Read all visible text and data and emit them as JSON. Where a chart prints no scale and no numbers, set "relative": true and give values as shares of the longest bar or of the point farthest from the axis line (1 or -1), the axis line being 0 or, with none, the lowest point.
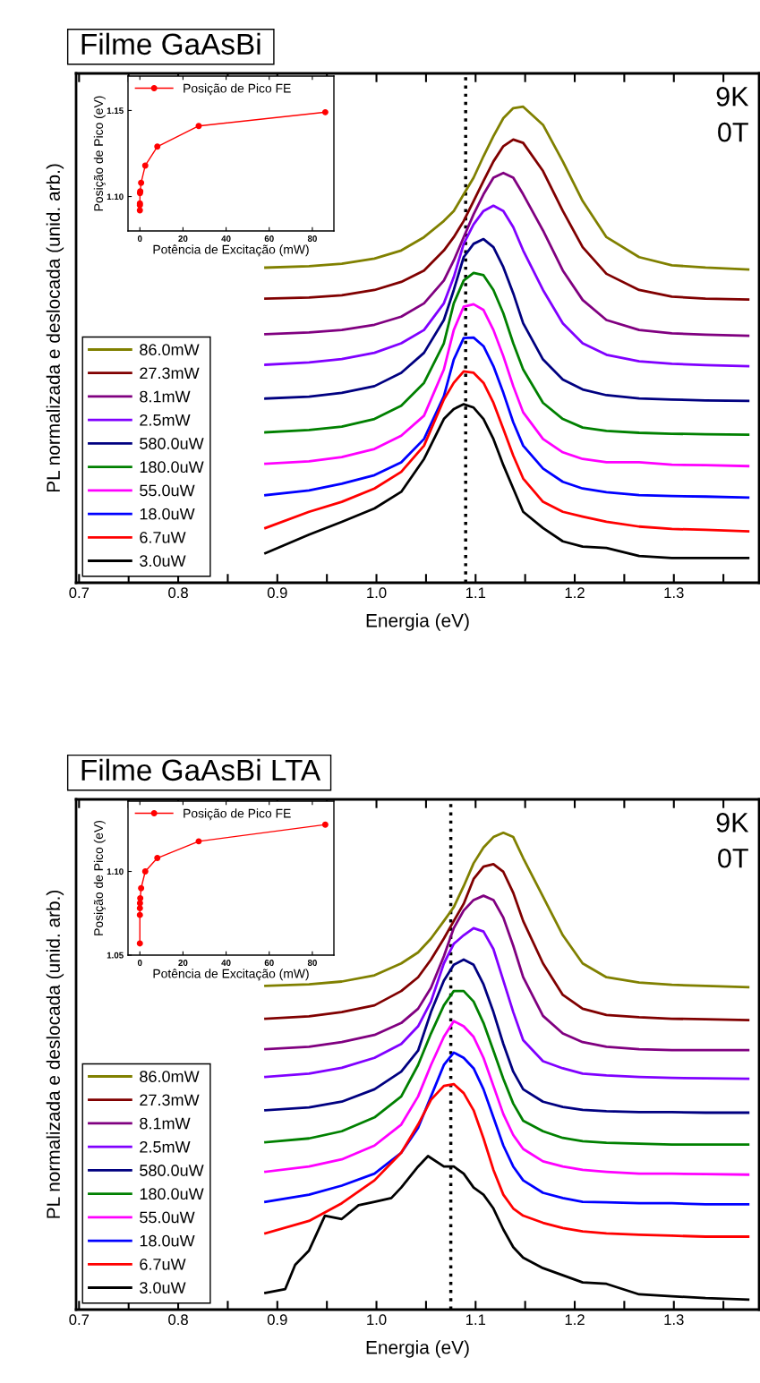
{
  "chart_data": [
    {
      "type": "line",
      "title": "Filme GaAsBi",
      "xlabel": "Energia (eV)",
      "ylabel": "PL normalizada e deslocada (unid. arb.)",
      "relative": true,
      "xlim": [
        0.697,
        1.386
      ],
      "xticks": [
        0.7,
        {
          "value": 0.75,
          "label": null
        },
        0.8,
        {
          "value": 0.85,
          "label": null
        },
        0.9,
        {
          "value": 0.95,
          "label": null
        },
        {
          "value": 1,
          "label": "1.0"
        },
        {
          "value": 1.05,
          "label": null
        },
        1.1,
        {
          "value": 1.15,
          "label": null
        },
        1.2,
        {
          "value": 1.25,
          "label": null
        },
        1.3,
        {
          "value": 1.35,
          "label": null
        }
      ],
      "tick_labels": "x",
      "legend": "bottom left",
      "annotations": [
        "9K",
        "0T"
      ],
      "ref_lines": [
        {
          "axis": "x",
          "value": 1.09,
          "color": "#000000",
          "line_style": "dotted"
        }
      ],
      "x": [
        0.888,
        0.932,
        0.965,
        0.998,
        1.025,
        1.048,
        1.068,
        1.078,
        1.088,
        1.098,
        1.108,
        1.118,
        1.128,
        1.138,
        1.148,
        1.168,
        1.188,
        1.208,
        1.232,
        1.265,
        1.298,
        1.332,
        1.375
      ],
      "series": [
        {
          "name": "86.0mW",
          "color": "#808000",
          "values": [
            0.662,
            0.665,
            0.67,
            0.681,
            0.698,
            0.726,
            0.76,
            0.781,
            0.816,
            0.851,
            0.896,
            0.938,
            0.976,
            0.997,
            1.0,
            0.962,
            0.885,
            0.802,
            0.726,
            0.684,
            0.667,
            0.662,
            0.658
          ]
        },
        {
          "name": "27.3mW",
          "color": "#800000",
          "values": [
            0.597,
            0.599,
            0.604,
            0.615,
            0.632,
            0.656,
            0.698,
            0.726,
            0.76,
            0.802,
            0.844,
            0.885,
            0.917,
            0.931,
            0.924,
            0.865,
            0.781,
            0.705,
            0.649,
            0.615,
            0.601,
            0.597,
            0.595
          ]
        },
        {
          "name": "8.1mW",
          "color": "#800080",
          "values": [
            0.522,
            0.526,
            0.531,
            0.542,
            0.559,
            0.587,
            0.635,
            0.677,
            0.726,
            0.774,
            0.816,
            0.851,
            0.861,
            0.851,
            0.816,
            0.74,
            0.656,
            0.594,
            0.552,
            0.531,
            0.524,
            0.521,
            0.519
          ]
        },
        {
          "name": "2.5mW",
          "color": "#8000ff",
          "values": [
            0.458,
            0.463,
            0.47,
            0.483,
            0.503,
            0.531,
            0.587,
            0.642,
            0.712,
            0.753,
            0.781,
            0.792,
            0.781,
            0.747,
            0.698,
            0.615,
            0.545,
            0.503,
            0.479,
            0.465,
            0.46,
            0.457,
            0.455
          ]
        },
        {
          "name": "580.0uW",
          "color": "#000080",
          "values": [
            0.387,
            0.391,
            0.399,
            0.413,
            0.441,
            0.483,
            0.552,
            0.615,
            0.684,
            0.712,
            0.722,
            0.705,
            0.663,
            0.608,
            0.545,
            0.469,
            0.427,
            0.406,
            0.394,
            0.387,
            0.385,
            0.383,
            0.382
          ]
        },
        {
          "name": "180.0uW",
          "color": "#008000",
          "values": [
            0.316,
            0.321,
            0.328,
            0.344,
            0.372,
            0.42,
            0.503,
            0.587,
            0.635,
            0.651,
            0.646,
            0.615,
            0.566,
            0.503,
            0.448,
            0.378,
            0.344,
            0.326,
            0.319,
            0.315,
            0.313,
            0.312,
            0.311
          ]
        },
        {
          "name": "55.0uW",
          "color": "#ff00ff",
          "values": [
            0.25,
            0.255,
            0.264,
            0.281,
            0.309,
            0.351,
            0.448,
            0.531,
            0.58,
            0.585,
            0.573,
            0.531,
            0.476,
            0.413,
            0.358,
            0.302,
            0.274,
            0.26,
            0.253,
            0.253,
            0.248,
            0.247,
            0.245
          ]
        },
        {
          "name": "18.0uW",
          "color": "#0000ff",
          "values": [
            0.184,
            0.194,
            0.208,
            0.226,
            0.253,
            0.302,
            0.392,
            0.469,
            0.514,
            0.515,
            0.497,
            0.455,
            0.399,
            0.337,
            0.288,
            0.24,
            0.212,
            0.198,
            0.19,
            0.184,
            0.182,
            0.181,
            0.179
          ]
        },
        {
          "name": "6.7uW",
          "color": "#ff0000",
          "values": [
            0.115,
            0.149,
            0.17,
            0.198,
            0.233,
            0.288,
            0.385,
            0.42,
            0.444,
            0.441,
            0.42,
            0.378,
            0.323,
            0.267,
            0.219,
            0.17,
            0.149,
            0.139,
            0.128,
            0.118,
            0.113,
            0.111,
            0.108
          ]
        },
        {
          "name": "3.0uW",
          "color": "#000000",
          "values": [
            0.062,
            0.101,
            0.128,
            0.156,
            0.191,
            0.26,
            0.344,
            0.365,
            0.375,
            0.368,
            0.344,
            0.302,
            0.247,
            0.198,
            0.149,
            0.115,
            0.087,
            0.076,
            0.073,
            0.056,
            0.052,
            0.052,
            0.052
          ]
        }
      ]
    },
    {
      "type": "line",
      "xlabel": "Potência de Excitação (mW)",
      "ylabel": "Posição de Pico (eV)",
      "xlim": [
        -5.5,
        90
      ],
      "xticks": [
        0,
        20,
        40,
        60,
        80
      ],
      "ylim": [
        1.08,
        1.17
      ],
      "yticks": [
        {
          "value": 1.1,
          "label": "1.10"
        },
        {
          "value": 1.15,
          "label": "1.15"
        }
      ],
      "marker": "circle",
      "legend": "top left",
      "x": [
        0.003,
        0.0067,
        0.018,
        0.055,
        0.18,
        0.58,
        2.5,
        8.1,
        27.3,
        86.0
      ],
      "series": [
        {
          "name": "Posição de Pico FE",
          "color": "#ff0000",
          "values": [
            1.092,
            1.095,
            1.096,
            1.102,
            1.103,
            1.108,
            1.118,
            1.129,
            1.141,
            1.149
          ]
        }
      ]
    },
    {
      "type": "line",
      "title": "Filme GaAsBi LTA",
      "xlabel": "Energia (eV)",
      "ylabel": "PL normalizada e deslocada (unid. arb.)",
      "relative": true,
      "xlim": [
        0.697,
        1.386
      ],
      "xticks": [
        0.7,
        {
          "value": 0.75,
          "label": null
        },
        0.8,
        {
          "value": 0.85,
          "label": null
        },
        0.9,
        {
          "value": 0.95,
          "label": null
        },
        {
          "value": 1,
          "label": "1.0"
        },
        {
          "value": 1.05,
          "label": null
        },
        1.1,
        {
          "value": 1.15,
          "label": null
        },
        1.2,
        {
          "value": 1.25,
          "label": null
        },
        1.3,
        {
          "value": 1.35,
          "label": null
        }
      ],
      "tick_labels": "x",
      "legend": "bottom left",
      "annotations": [
        "9K",
        "0T"
      ],
      "ref_lines": [
        {
          "axis": "x",
          "value": 1.075,
          "color": "#000000",
          "line_style": "dotted"
        }
      ],
      "x": [
        0.888,
        0.932,
        0.965,
        0.998,
        1.025,
        1.042,
        1.055,
        1.068,
        1.078,
        1.088,
        1.098,
        1.108,
        1.118,
        1.128,
        1.138,
        1.148,
        1.168,
        1.188,
        1.208,
        1.232,
        1.265,
        1.298,
        1.332,
        1.375
      ],
      "series": [
        {
          "name": "86.0mW",
          "color": "#808000",
          "values": [
            0.679,
            0.682,
            0.688,
            0.701,
            0.726,
            0.749,
            0.778,
            0.815,
            0.844,
            0.888,
            0.936,
            0.969,
            0.991,
            1.0,
            0.991,
            0.947,
            0.866,
            0.785,
            0.726,
            0.697,
            0.686,
            0.681,
            0.679,
            0.676
          ]
        },
        {
          "name": "27.3mW",
          "color": "#800000",
          "values": [
            0.61,
            0.615,
            0.624,
            0.638,
            0.668,
            0.697,
            0.734,
            0.778,
            0.815,
            0.851,
            0.903,
            0.929,
            0.934,
            0.918,
            0.874,
            0.815,
            0.726,
            0.66,
            0.631,
            0.618,
            0.613,
            0.61,
            0.609,
            0.607
          ]
        },
        {
          "name": "8.1mW",
          "color": "#800080",
          "values": [
            0.546,
            0.551,
            0.561,
            0.576,
            0.601,
            0.631,
            0.675,
            0.741,
            0.8,
            0.837,
            0.859,
            0.868,
            0.859,
            0.822,
            0.763,
            0.697,
            0.616,
            0.579,
            0.561,
            0.551,
            0.546,
            0.544,
            0.544,
            0.544
          ]
        },
        {
          "name": "2.5mW",
          "color": "#8000ff",
          "values": [
            0.488,
            0.495,
            0.507,
            0.528,
            0.557,
            0.594,
            0.646,
            0.726,
            0.767,
            0.785,
            0.8,
            0.793,
            0.756,
            0.69,
            0.624,
            0.565,
            0.521,
            0.506,
            0.495,
            0.491,
            0.488,
            0.486,
            0.485,
            0.484
          ]
        },
        {
          "name": "580.0uW",
          "color": "#000080",
          "values": [
            0.418,
            0.424,
            0.436,
            0.462,
            0.499,
            0.543,
            0.624,
            0.69,
            0.723,
            0.734,
            0.723,
            0.682,
            0.624,
            0.557,
            0.499,
            0.462,
            0.436,
            0.425,
            0.419,
            0.416,
            0.414,
            0.414,
            0.413,
            0.413
          ]
        },
        {
          "name": "180.0uW",
          "color": "#008000",
          "values": [
            0.351,
            0.359,
            0.374,
            0.403,
            0.447,
            0.513,
            0.579,
            0.638,
            0.668,
            0.668,
            0.646,
            0.601,
            0.543,
            0.484,
            0.432,
            0.396,
            0.374,
            0.36,
            0.353,
            0.35,
            0.348,
            0.346,
            0.346,
            0.346
          ]
        },
        {
          "name": "55.0uW",
          "color": "#ff00ff",
          "values": [
            0.289,
            0.3,
            0.315,
            0.344,
            0.388,
            0.447,
            0.513,
            0.572,
            0.605,
            0.594,
            0.572,
            0.528,
            0.469,
            0.41,
            0.366,
            0.337,
            0.311,
            0.3,
            0.293,
            0.289,
            0.285,
            0.285,
            0.284,
            0.283
          ]
        },
        {
          "name": "18.0uW",
          "color": "#0000ff",
          "values": [
            0.226,
            0.241,
            0.26,
            0.285,
            0.329,
            0.381,
            0.447,
            0.513,
            0.539,
            0.528,
            0.506,
            0.462,
            0.403,
            0.344,
            0.3,
            0.271,
            0.245,
            0.234,
            0.226,
            0.225,
            0.223,
            0.223,
            0.221,
            0.221
          ]
        },
        {
          "name": "6.7uW",
          "color": "#ff0000",
          "values": [
            0.16,
            0.186,
            0.223,
            0.271,
            0.329,
            0.388,
            0.44,
            0.469,
            0.473,
            0.454,
            0.418,
            0.359,
            0.293,
            0.241,
            0.212,
            0.197,
            0.182,
            0.171,
            0.164,
            0.16,
            0.157,
            0.155,
            0.153,
            0.153
          ]
        },
        {
          "name": "3.0uW",
          "color": "#000000",
          "x": [
            0.888,
            0.908,
            0.918,
            0.932,
            0.948,
            0.965,
            0.982,
            0.998,
            1.015,
            1.025,
            1.042,
            1.052,
            1.068,
            1.078,
            1.088,
            1.098,
            1.108,
            1.118,
            1.128,
            1.138,
            1.148,
            1.168,
            1.188,
            1.208,
            1.232,
            1.265,
            1.298,
            1.332,
            1.375
          ],
          "values": [
            0.035,
            0.043,
            0.094,
            0.124,
            0.197,
            0.19,
            0.219,
            0.226,
            0.234,
            0.256,
            0.3,
            0.322,
            0.3,
            0.3,
            0.285,
            0.256,
            0.241,
            0.212,
            0.168,
            0.131,
            0.109,
            0.087,
            0.072,
            0.057,
            0.054,
            0.032,
            0.028,
            0.024,
            0.021
          ]
        }
      ]
    },
    {
      "type": "line",
      "xlabel": "Potência de Excitação (mW)",
      "ylabel": "Posição de Pico (eV)",
      "xlim": [
        -5.5,
        90
      ],
      "xticks": [
        0,
        20,
        40,
        60,
        80
      ],
      "ylim": [
        1.05,
        1.142
      ],
      "yticks": [
        {
          "value": 1.05,
          "label": "1.05"
        },
        {
          "value": 1.1,
          "label": "1.10"
        }
      ],
      "marker": "circle",
      "legend": "top left",
      "x": [
        0.003,
        0.0067,
        0.018,
        0.055,
        0.18,
        0.58,
        2.5,
        8.1,
        27.3,
        86.0
      ],
      "series": [
        {
          "name": "Posição de Pico FE",
          "color": "#ff0000",
          "values": [
            1.057,
            1.074,
            1.078,
            1.081,
            1.084,
            1.09,
            1.1,
            1.108,
            1.118,
            1.128
          ]
        }
      ]
    }
  ]
}
